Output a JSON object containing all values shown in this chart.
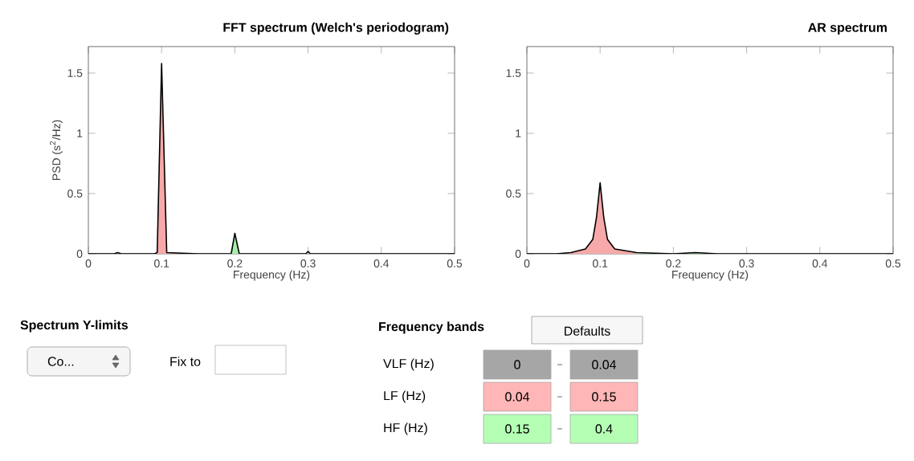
{
  "chart_data": [
    {
      "type": "line",
      "title": "FFT spectrum (Welch's periodogram)",
      "xlabel": "Frequency (Hz)",
      "ylabel": "PSD (s$^{2}$/Hz)",
      "xlim": [
        0,
        0.5
      ],
      "ylim": [
        0,
        1.72
      ],
      "xticks": [
        0,
        0.1,
        0.2,
        0.3,
        0.4,
        0.5
      ],
      "yticks": [
        0,
        0.5,
        1,
        1.5
      ],
      "series": [
        {
          "type": "area",
          "color": "#f7a8a8",
          "x": [
            0.04,
            0.045,
            0.09,
            0.094,
            0.1,
            0.107,
            0.15
          ],
          "values": [
            0.01,
            0,
            0,
            0.01,
            1.58,
            0.01,
            0
          ]
        },
        {
          "type": "area",
          "color": "#a8eea8",
          "x": [
            0.15,
            0.195,
            0.2,
            0.206,
            0.297,
            0.3,
            0.303,
            0.4
          ],
          "values": [
            0,
            0,
            0.17,
            0,
            0,
            0.02,
            0,
            0
          ]
        },
        {
          "type": "line",
          "color": "#000000",
          "x": [
            0,
            0.035,
            0.04,
            0.045,
            0.09,
            0.094,
            0.1,
            0.107,
            0.15,
            0.195,
            0.2,
            0.206,
            0.297,
            0.3,
            0.303,
            0.4,
            0.5
          ],
          "values": [
            0,
            0,
            0.01,
            0,
            0,
            0.01,
            1.58,
            0.01,
            0,
            0,
            0.17,
            0,
            0,
            0.02,
            0,
            0,
            0
          ]
        }
      ]
    },
    {
      "type": "line",
      "title": "AR spectrum",
      "xlabel": "Frequency (Hz)",
      "xlim": [
        0,
        0.5
      ],
      "ylim": [
        0,
        1.72
      ],
      "xticks": [
        0,
        0.1,
        0.2,
        0.3,
        0.4,
        0.5
      ],
      "yticks": [
        0,
        0.5,
        1,
        1.5
      ],
      "series": [
        {
          "type": "area",
          "color": "#f7a8a8",
          "x": [
            0.04,
            0.06,
            0.08,
            0.09,
            0.095,
            0.1,
            0.105,
            0.11,
            0.12,
            0.15
          ],
          "values": [
            0,
            0.01,
            0.04,
            0.12,
            0.3,
            0.59,
            0.3,
            0.12,
            0.04,
            0.01
          ]
        },
        {
          "type": "area",
          "color": "#a8eea8",
          "x": [
            0.15,
            0.2,
            0.23,
            0.26,
            0.4
          ],
          "values": [
            0.01,
            0,
            0.01,
            0,
            0
          ]
        },
        {
          "type": "line",
          "color": "#000000",
          "x": [
            0,
            0.04,
            0.06,
            0.08,
            0.09,
            0.095,
            0.1,
            0.105,
            0.11,
            0.12,
            0.15,
            0.2,
            0.23,
            0.26,
            0.4,
            0.5
          ],
          "values": [
            0,
            0,
            0.01,
            0.04,
            0.12,
            0.3,
            0.59,
            0.3,
            0.12,
            0.04,
            0.01,
            0,
            0.01,
            0,
            0,
            0
          ]
        }
      ]
    },
    {
      "type": "other",
      "title": "Spectrum Y-limits",
      "annotations": [
        "Co...",
        "Fix to"
      ]
    },
    {
      "type": "other",
      "title": "Frequency bands",
      "annotations": [
        "Defaults"
      ],
      "categories": [
        "VLF (Hz)",
        "LF (Hz)",
        "HF (Hz)"
      ],
      "cell_labels": [
        [
          "0",
          "0.04"
        ],
        [
          "0.04",
          "0.15"
        ],
        [
          "0.15",
          "0.4"
        ]
      ],
      "colors": [
        "#a6a6a6",
        "#ffb6b6",
        "#b4ffb4"
      ]
    }
  ]
}
